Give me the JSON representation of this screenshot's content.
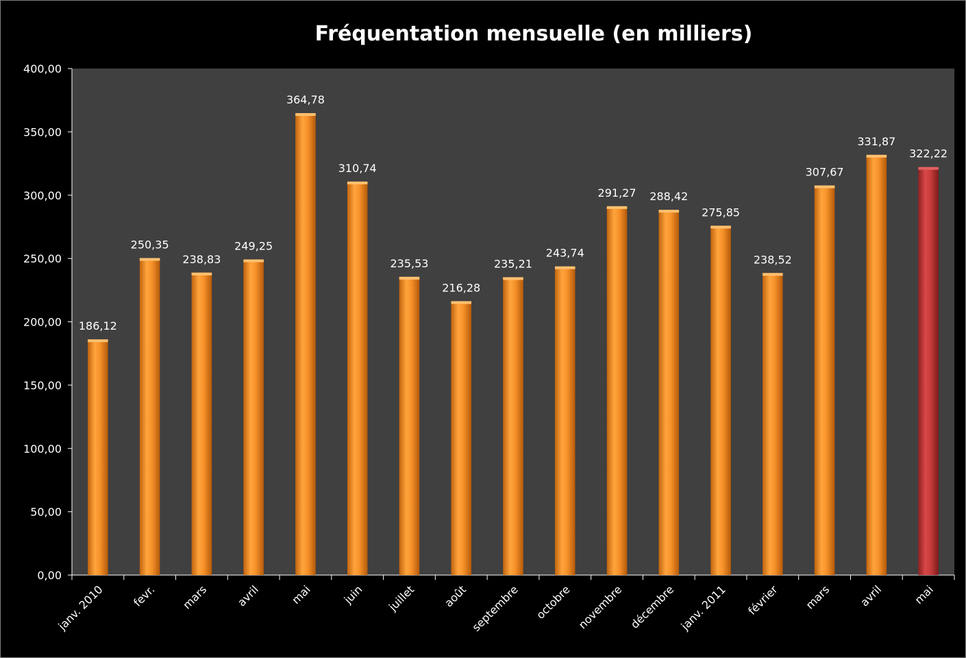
{
  "chart_data": {
    "type": "bar",
    "title": "Fréquentation mensuelle (en milliers)",
    "xlabel": "",
    "ylabel": "",
    "ylim": [
      0,
      400
    ],
    "yticks": [
      "0,00",
      "50,00",
      "100,00",
      "150,00",
      "200,00",
      "250,00",
      "300,00",
      "350,00",
      "400,00"
    ],
    "categories": [
      "janv. 2010",
      "fevr.",
      "mars",
      "avril",
      "mai",
      "juin",
      "juillet",
      "août",
      "septembre",
      "octobre",
      "novembre",
      "décembre",
      "janv. 2011",
      "février",
      "mars",
      "avril",
      "mai"
    ],
    "values": [
      186.12,
      250.35,
      238.83,
      249.25,
      364.78,
      310.74,
      235.53,
      216.28,
      235.21,
      243.74,
      291.27,
      288.42,
      275.85,
      238.52,
      307.67,
      331.87,
      322.22
    ],
    "value_labels": [
      "186,12",
      "250,35",
      "238,83",
      "249,25",
      "364,78",
      "310,74",
      "235,53",
      "216,28",
      "235,21",
      "243,74",
      "291,27",
      "288,42",
      "275,85",
      "238,52",
      "307,67",
      "331,87",
      "322,22"
    ],
    "grid": false,
    "legend": "none",
    "highlight_index": 16,
    "colors": {
      "background": "#000000",
      "plot_area": "#404040",
      "bar": "#f7922a",
      "bar_highlight": "#c83c3c",
      "text": "#ffffff",
      "axis": "#ffffff"
    }
  }
}
